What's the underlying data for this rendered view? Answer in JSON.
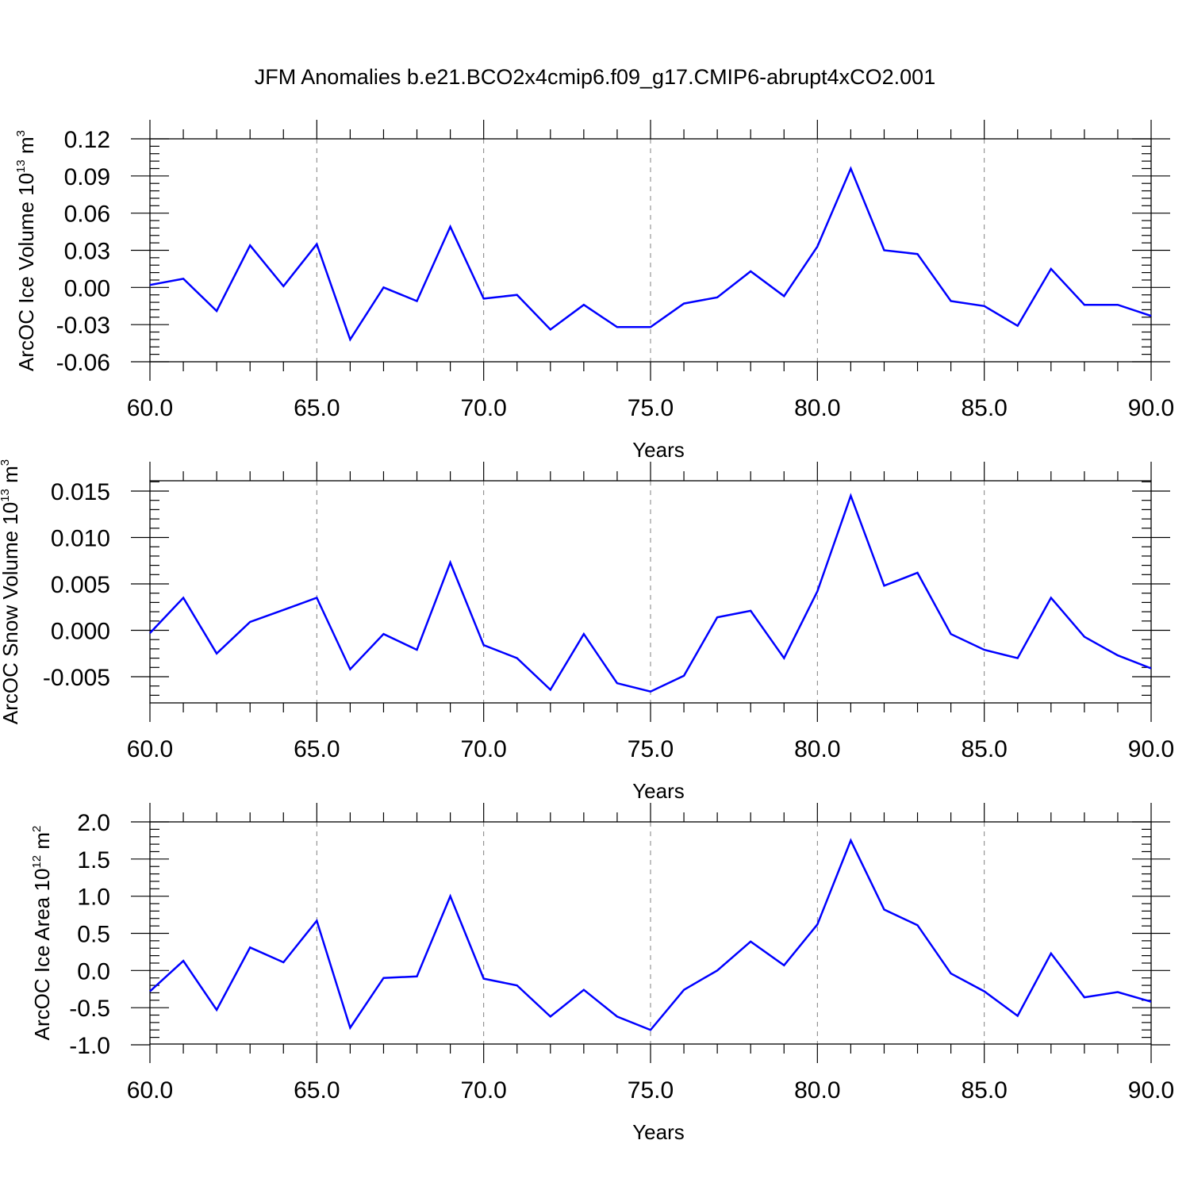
{
  "figure_title": "JFM Anomalies b.e21.BCO2x4cmip6.f09_g17.CMIP6-abrupt4xCO2.001",
  "colors": {
    "line": "#0000ff",
    "axis": "#000000",
    "grid": "#808080"
  },
  "chart_data": [
    {
      "type": "line",
      "xlabel": "Years",
      "ylabel": {
        "main": "ArcOC Ice Volume 10",
        "exp": "13",
        "unit": " m",
        "unit_exp": "3"
      },
      "xlim": [
        60,
        90
      ],
      "ylim": [
        -0.06,
        0.12
      ],
      "xticks": [
        "60.0",
        "65.0",
        "70.0",
        "75.0",
        "80.0",
        "85.0",
        "90.0"
      ],
      "yticks": [
        "0.12",
        "0.09",
        "0.06",
        "0.03",
        "0.00",
        "-0.03",
        "-0.06"
      ],
      "grid": "vertical dashed at major x ticks",
      "x": [
        60,
        61,
        62,
        63,
        64,
        65,
        66,
        67,
        68,
        69,
        70,
        71,
        72,
        73,
        74,
        75,
        76,
        77,
        78,
        79,
        80,
        81,
        82,
        83,
        84,
        85,
        86,
        87,
        88,
        89,
        90
      ],
      "series": [
        {
          "values": [
            0.002,
            0.007,
            -0.019,
            0.034,
            0.001,
            0.035,
            -0.042,
            0.0,
            -0.011,
            0.049,
            -0.009,
            -0.006,
            -0.034,
            -0.014,
            -0.032,
            -0.032,
            -0.013,
            -0.008,
            0.013,
            -0.007,
            0.033,
            0.096,
            0.03,
            0.027,
            -0.011,
            -0.015,
            -0.031,
            0.015,
            -0.014,
            -0.014,
            -0.023
          ]
        }
      ]
    },
    {
      "type": "line",
      "xlabel": "Years",
      "ylabel": {
        "main": "ArcOC Snow Volume 10",
        "exp": "13",
        "unit": " m",
        "unit_exp": "3"
      },
      "xlim": [
        60,
        90
      ],
      "ylim": [
        -0.008,
        0.016
      ],
      "xticks": [
        "60.0",
        "65.0",
        "70.0",
        "75.0",
        "80.0",
        "85.0",
        "90.0"
      ],
      "yticks": [
        "0.015",
        "0.010",
        "0.005",
        "0.000",
        "-0.005"
      ],
      "ytick_values": [
        0.015,
        0.01,
        0.005,
        0.0,
        -0.005
      ],
      "grid": "vertical dashed at major x ticks",
      "x": [
        60,
        61,
        62,
        63,
        64,
        65,
        66,
        67,
        68,
        69,
        70,
        71,
        72,
        73,
        74,
        75,
        76,
        77,
        78,
        79,
        80,
        81,
        82,
        83,
        84,
        85,
        86,
        87,
        88,
        89,
        90
      ],
      "series": [
        {
          "values": [
            -0.0003,
            0.0035,
            -0.0025,
            0.0009,
            0.0022,
            0.0035,
            -0.0042,
            -0.0004,
            -0.0021,
            0.0073,
            -0.0016,
            -0.003,
            -0.0064,
            -0.0004,
            -0.0057,
            -0.0066,
            -0.0049,
            0.0014,
            0.0021,
            -0.003,
            0.0042,
            0.0145,
            0.0048,
            0.0062,
            -0.0004,
            -0.0021,
            -0.003,
            0.0035,
            -0.0007,
            -0.0027,
            -0.0041
          ]
        }
      ]
    },
    {
      "type": "line",
      "xlabel": "Years",
      "ylabel": {
        "main": "ArcOC Ice Area 10",
        "exp": "12",
        "unit": " m",
        "unit_exp": "2"
      },
      "xlim": [
        60,
        90
      ],
      "ylim": [
        -1.25,
        2.3
      ],
      "xticks": [
        "60.0",
        "65.0",
        "70.0",
        "75.0",
        "80.0",
        "85.0",
        "90.0"
      ],
      "yticks": [
        "2.0",
        "1.5",
        "1.0",
        "0.5",
        "0.0",
        "-0.5",
        "-1.0"
      ],
      "ytick_values": [
        2.0,
        1.5,
        1.0,
        0.5,
        0.0,
        -0.5,
        -1.0
      ],
      "grid": "vertical dashed at major x ticks",
      "x": [
        60,
        61,
        62,
        63,
        64,
        65,
        66,
        67,
        68,
        69,
        70,
        71,
        72,
        73,
        74,
        75,
        76,
        77,
        78,
        79,
        80,
        81,
        82,
        83,
        84,
        85,
        86,
        87,
        88,
        89,
        90
      ],
      "series": [
        {
          "values": [
            -0.28,
            0.13,
            -0.53,
            0.31,
            0.11,
            0.67,
            -0.77,
            -0.1,
            -0.08,
            1.0,
            -0.11,
            -0.2,
            -0.62,
            -0.26,
            -0.62,
            -0.8,
            -0.26,
            0.0,
            0.39,
            0.07,
            0.62,
            1.75,
            0.82,
            0.61,
            -0.04,
            -0.28,
            -0.61,
            0.23,
            -0.36,
            -0.29,
            -0.42
          ]
        }
      ]
    }
  ]
}
